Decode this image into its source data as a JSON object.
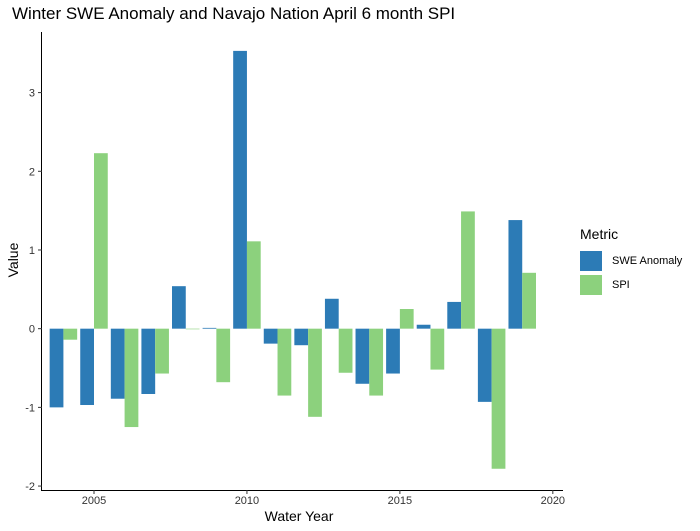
{
  "title": "Winter SWE Anomaly and Navajo Nation April 6 month SPI",
  "legend": {
    "title": "Metric",
    "items": [
      {
        "label": "SWE Anomaly",
        "color": "#2c7bb6"
      },
      {
        "label": "SPI",
        "color": "#8cd17d"
      }
    ]
  },
  "chart_data": {
    "type": "bar",
    "title": "Winter SWE Anomaly and Navajo Nation April 6 month SPI",
    "xlabel": "Water Year",
    "ylabel": "Value",
    "xlim": [
      2003.3,
      2020.3
    ],
    "ylim": [
      -2.05,
      3.77
    ],
    "xticks": [
      2005,
      2010,
      2015,
      2020
    ],
    "yticks": [
      -2,
      -1,
      0,
      1,
      2,
      3
    ],
    "x": [
      2004,
      2005,
      2006,
      2007,
      2008,
      2009,
      2010,
      2011,
      2012,
      2013,
      2014,
      2015,
      2016,
      2017,
      2018,
      2019
    ],
    "series": [
      {
        "name": "SWE Anomaly",
        "color": "#2c7bb6",
        "values": [
          -1.0,
          -0.97,
          -0.89,
          -0.83,
          0.54,
          0.01,
          3.53,
          -0.19,
          -0.21,
          0.38,
          -0.7,
          -0.57,
          0.05,
          0.34,
          -0.93,
          1.38
        ]
      },
      {
        "name": "SPI",
        "color": "#8cd17d",
        "values": [
          -0.14,
          2.23,
          -1.25,
          -0.57,
          0.0,
          -0.68,
          1.11,
          -0.85,
          -1.12,
          -0.56,
          -0.85,
          0.25,
          -0.52,
          1.49,
          -1.78,
          0.71
        ]
      }
    ],
    "grid": false,
    "legend_position": "right"
  }
}
